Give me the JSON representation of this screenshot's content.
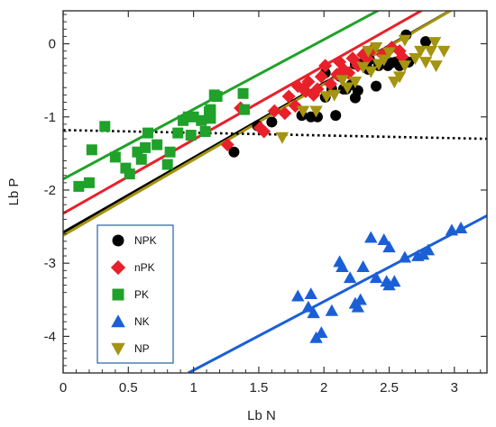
{
  "chart_data": {
    "type": "scatter",
    "xlabel": "Lb N",
    "ylabel": "Lb P",
    "xlim": [
      0,
      3.25
    ],
    "ylim": [
      -4.5,
      0.45
    ],
    "xticks": [
      0,
      0.5,
      1,
      1.5,
      2,
      2.5,
      3
    ],
    "xtick_labels": [
      "0",
      "0.5",
      "1",
      "1.5",
      "2",
      "2.5",
      "3"
    ],
    "yticks": [
      0,
      -1,
      -2,
      -3,
      -4
    ],
    "ytick_labels": [
      "0",
      "-1",
      "-2",
      "-3",
      "-4"
    ],
    "grid": false,
    "legend_position": "lower-left",
    "series": [
      {
        "name": "NPK",
        "marker": "circle",
        "color": "#000000",
        "points": [
          [
            1.31,
            -1.48
          ],
          [
            1.49,
            -1.12
          ],
          [
            1.6,
            -1.07
          ],
          [
            1.83,
            -0.98
          ],
          [
            1.9,
            -1.0
          ],
          [
            1.95,
            -1.0
          ],
          [
            2.01,
            -0.73
          ],
          [
            2.06,
            -0.62
          ],
          [
            2.09,
            -0.98
          ],
          [
            2.15,
            -0.62
          ],
          [
            2.17,
            -0.62
          ],
          [
            2.21,
            -0.56
          ],
          [
            2.24,
            -0.74
          ],
          [
            2.26,
            -0.64
          ],
          [
            2.34,
            -0.35
          ],
          [
            2.4,
            -0.58
          ],
          [
            2.42,
            -0.3
          ],
          [
            2.46,
            -0.25
          ],
          [
            2.49,
            -0.3
          ],
          [
            2.52,
            -0.26
          ],
          [
            2.55,
            -0.25
          ],
          [
            2.58,
            -0.3
          ],
          [
            2.63,
            0.12
          ],
          [
            2.65,
            -0.25
          ],
          [
            2.78,
            0.03
          ],
          [
            2.24,
            -0.28
          ],
          [
            2.35,
            -0.22
          ],
          [
            2.28,
            -0.28
          ],
          [
            2.01,
            -0.4
          ],
          [
            2.13,
            -0.45
          ]
        ],
        "fit": [
          [
            0,
            -2.58
          ],
          [
            3.25,
            0.74
          ]
        ]
      },
      {
        "name": "nPK",
        "marker": "diamond",
        "color": "#e8202a",
        "points": [
          [
            1.26,
            -1.38
          ],
          [
            1.36,
            -0.88
          ],
          [
            1.51,
            -1.15
          ],
          [
            1.54,
            -1.2
          ],
          [
            1.62,
            -0.92
          ],
          [
            1.7,
            -0.95
          ],
          [
            1.73,
            -0.72
          ],
          [
            1.78,
            -0.85
          ],
          [
            1.8,
            -0.58
          ],
          [
            1.84,
            -0.62
          ],
          [
            1.86,
            -0.65
          ],
          [
            1.88,
            -0.52
          ],
          [
            1.92,
            -0.7
          ],
          [
            1.95,
            -0.62
          ],
          [
            1.98,
            -0.45
          ],
          [
            2.01,
            -0.3
          ],
          [
            2.05,
            -0.55
          ],
          [
            2.1,
            -0.42
          ],
          [
            2.12,
            -0.25
          ],
          [
            2.15,
            -0.35
          ],
          [
            2.19,
            -0.4
          ],
          [
            2.22,
            -0.2
          ],
          [
            2.26,
            -0.3
          ],
          [
            2.3,
            -0.15
          ],
          [
            2.33,
            -0.2
          ],
          [
            2.37,
            -0.08
          ],
          [
            2.45,
            -0.15
          ],
          [
            2.52,
            -0.05
          ],
          [
            2.58,
            -0.1
          ],
          [
            2.6,
            -0.18
          ]
        ],
        "fit": [
          [
            0,
            -2.32
          ],
          [
            3.25,
            0.96
          ]
        ]
      },
      {
        "name": "PK",
        "marker": "square",
        "color": "#1fa12a",
        "points": [
          [
            0.12,
            -1.95
          ],
          [
            0.2,
            -1.9
          ],
          [
            0.22,
            -1.45
          ],
          [
            0.32,
            -1.13
          ],
          [
            0.4,
            -1.55
          ],
          [
            0.48,
            -1.7
          ],
          [
            0.51,
            -1.78
          ],
          [
            0.57,
            -1.48
          ],
          [
            0.6,
            -1.58
          ],
          [
            0.63,
            -1.42
          ],
          [
            0.65,
            -1.22
          ],
          [
            0.72,
            -1.38
          ],
          [
            0.8,
            -1.65
          ],
          [
            0.82,
            -1.48
          ],
          [
            0.88,
            -1.22
          ],
          [
            0.92,
            -1.05
          ],
          [
            0.96,
            -1.0
          ],
          [
            1.0,
            -1.0
          ],
          [
            1.06,
            -1.05
          ],
          [
            1.09,
            -1.2
          ],
          [
            1.13,
            -0.9
          ],
          [
            1.16,
            -0.7
          ],
          [
            1.18,
            -0.72
          ],
          [
            1.38,
            -0.68
          ],
          [
            1.39,
            -0.9
          ],
          [
            1.13,
            -1.02
          ],
          [
            0.98,
            -1.25
          ],
          [
            1.12,
            -0.93
          ]
        ],
        "fit": [
          [
            0,
            -1.85
          ],
          [
            3.25,
            1.25
          ]
        ]
      },
      {
        "name": "NK",
        "marker": "triangle-up",
        "color": "#1a5fd6",
        "points": [
          [
            1.8,
            -3.45
          ],
          [
            1.88,
            -3.6
          ],
          [
            1.9,
            -3.42
          ],
          [
            1.92,
            -3.68
          ],
          [
            1.94,
            -4.02
          ],
          [
            1.98,
            -3.95
          ],
          [
            2.06,
            -3.65
          ],
          [
            2.12,
            -2.98
          ],
          [
            2.14,
            -3.05
          ],
          [
            2.2,
            -3.2
          ],
          [
            2.24,
            -3.55
          ],
          [
            2.26,
            -3.6
          ],
          [
            2.28,
            -3.5
          ],
          [
            2.3,
            -3.05
          ],
          [
            2.36,
            -2.65
          ],
          [
            2.4,
            -3.2
          ],
          [
            2.46,
            -2.68
          ],
          [
            2.48,
            -3.25
          ],
          [
            2.5,
            -2.78
          ],
          [
            2.5,
            -3.3
          ],
          [
            2.54,
            -3.25
          ],
          [
            2.62,
            -2.92
          ],
          [
            2.72,
            -2.9
          ],
          [
            2.76,
            -2.88
          ],
          [
            2.8,
            -2.82
          ],
          [
            2.98,
            -2.55
          ],
          [
            3.05,
            -2.52
          ]
        ],
        "fit": [
          [
            0.96,
            -4.5
          ],
          [
            3.25,
            -2.35
          ]
        ]
      },
      {
        "name": "NP",
        "marker": "triangle-down",
        "color": "#a49410",
        "points": [
          [
            1.68,
            -1.28
          ],
          [
            1.84,
            -0.92
          ],
          [
            1.94,
            -0.92
          ],
          [
            2.02,
            -0.72
          ],
          [
            2.08,
            -0.7
          ],
          [
            2.14,
            -0.5
          ],
          [
            2.18,
            -0.6
          ],
          [
            2.24,
            -0.52
          ],
          [
            2.3,
            -0.32
          ],
          [
            2.36,
            -0.38
          ],
          [
            2.42,
            -0.28
          ],
          [
            2.46,
            -0.22
          ],
          [
            2.5,
            -0.12
          ],
          [
            2.54,
            -0.52
          ],
          [
            2.58,
            -0.45
          ],
          [
            2.62,
            -0.3
          ],
          [
            2.7,
            -0.2
          ],
          [
            2.74,
            -0.1
          ],
          [
            2.78,
            -0.25
          ],
          [
            2.82,
            -0.1
          ],
          [
            2.86,
            -0.3
          ],
          [
            2.92,
            -0.1
          ],
          [
            2.34,
            -0.1
          ],
          [
            2.4,
            -0.05
          ],
          [
            2.62,
            0.05
          ],
          [
            2.85,
            0.02
          ]
        ],
        "fit": [
          [
            0,
            -2.62
          ],
          [
            3.25,
            0.74
          ]
        ]
      }
    ],
    "reference_line": {
      "style": "dotted",
      "color": "#000000",
      "points": [
        [
          0,
          -1.18
        ],
        [
          3.25,
          -1.3
        ]
      ]
    }
  }
}
